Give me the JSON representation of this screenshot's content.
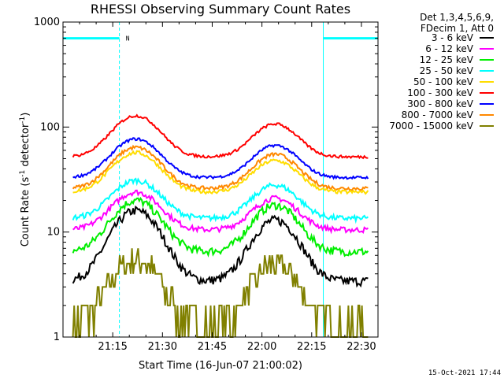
{
  "chart_data": {
    "type": "line",
    "title": "RHESSI Observing Summary Count Rates",
    "xlabel": "Start Time (16-Jun-07 21:00:02)",
    "ylabel_main": "Count Rate (s",
    "ylabel_sup1": "-1",
    "ylabel_mid": " detector",
    "ylabel_sup2": "-1",
    "ylabel_end": ")",
    "yscale": "log",
    "xlim": [
      0,
      95
    ],
    "ylim": [
      1,
      1000
    ],
    "grid": false,
    "legend_placement": "right",
    "footer": "15-Oct-2021 17:44",
    "header_line1": "Det 1,3,4,5,6,9,",
    "header_line2": "FDecim 1, Att 0",
    "x_ticks": [
      {
        "v": 15,
        "label": "21:15"
      },
      {
        "v": 30,
        "label": "21:30"
      },
      {
        "v": 45,
        "label": "21:45"
      },
      {
        "v": 60,
        "label": "22:00"
      },
      {
        "v": 75,
        "label": "22:15"
      },
      {
        "v": 90,
        "label": "22:30"
      }
    ],
    "y_ticks": [
      {
        "v": 1,
        "label": "1"
      },
      {
        "v": 10,
        "label": "10"
      },
      {
        "v": 100,
        "label": "100"
      },
      {
        "v": 1000,
        "label": "1000"
      }
    ],
    "night_intervals": [
      [
        0,
        17
      ],
      [
        78.5,
        95
      ]
    ],
    "saa_marker": "N",
    "saa_marker_x": 19.5,
    "series": [
      {
        "name": "3 - 6 keV",
        "color": "#000000",
        "base": 3.4,
        "peak1": 16,
        "peak2": 13,
        "noise": 0.1
      },
      {
        "name": "6 - 12 keV",
        "color": "#ff00ff",
        "base": 10.5,
        "peak1": 24,
        "peak2": 21,
        "noise": 0.06
      },
      {
        "name": "12 - 25 keV",
        "color": "#00ee00",
        "base": 6.5,
        "peak1": 20,
        "peak2": 18,
        "noise": 0.09
      },
      {
        "name": "25 - 50 keV",
        "color": "#00ffff",
        "base": 13.5,
        "peak1": 31,
        "peak2": 28,
        "noise": 0.06
      },
      {
        "name": "50 - 100 keV",
        "color": "#ffdd00",
        "base": 24,
        "peak1": 57,
        "peak2": 48,
        "noise": 0.04
      },
      {
        "name": "100 - 300 keV",
        "color": "#ff0000",
        "base": 52,
        "peak1": 128,
        "peak2": 107,
        "noise": 0.03
      },
      {
        "name": "300 - 800 keV",
        "color": "#0000ff",
        "base": 33,
        "peak1": 77,
        "peak2": 67,
        "noise": 0.03
      },
      {
        "name": "800 - 7000 keV",
        "color": "#ff8800",
        "base": 26,
        "peak1": 64,
        "peak2": 55,
        "noise": 0.04
      },
      {
        "name": "7000 - 15000 keV",
        "color": "#808000",
        "base": 1.3,
        "peak1": 5.5,
        "peak2": 5,
        "noise": 0.3
      }
    ]
  }
}
